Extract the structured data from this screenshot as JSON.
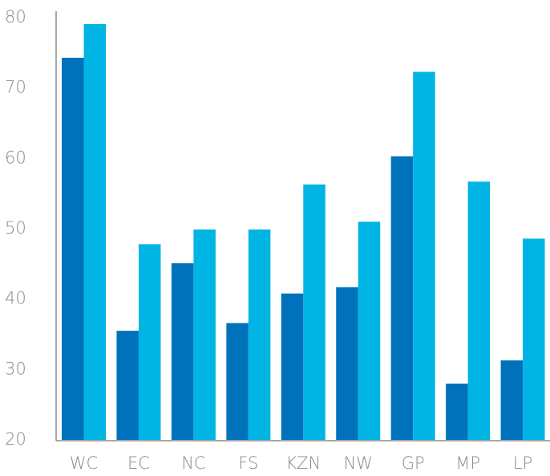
{
  "chart_data": {
    "type": "bar",
    "categories": [
      "WC",
      "EC",
      "NC",
      "FS",
      "KZN",
      "NW",
      "GP",
      "MP",
      "LP"
    ],
    "series": [
      {
        "color": "#0072bb",
        "values": [
          74.3,
          35.5,
          45.1,
          36.6,
          40.8,
          41.7,
          60.3,
          28.0,
          31.3
        ]
      },
      {
        "color": "#00b4e3",
        "values": [
          79.1,
          47.8,
          49.9,
          49.9,
          56.3,
          51.0,
          72.3,
          56.7,
          48.6
        ]
      }
    ],
    "ylim": [
      20,
      80
    ],
    "yticks": [
      20,
      30,
      40,
      50,
      60,
      70,
      80
    ],
    "grid": false
  }
}
